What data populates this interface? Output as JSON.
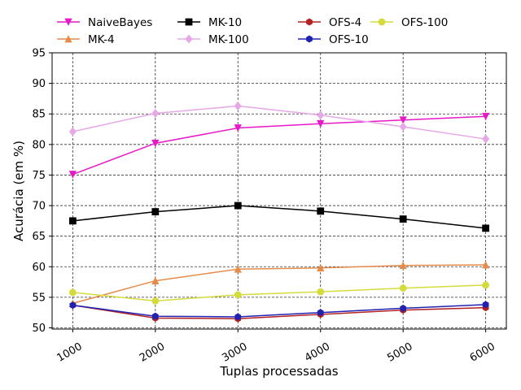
{
  "chart_data": {
    "type": "line",
    "title": "",
    "xlabel": "Tuplas processadas",
    "ylabel": "Acurácia (em %)",
    "x": [
      1000,
      2000,
      3000,
      4000,
      5000,
      6000
    ],
    "xticks": [
      "1000",
      "2000",
      "3000",
      "4000",
      "5000",
      "6000"
    ],
    "yticks": [
      "50",
      "55",
      "60",
      "65",
      "70",
      "75",
      "80",
      "85",
      "90",
      "95"
    ],
    "ylim": [
      49.8,
      95
    ],
    "xlim": [
      750,
      6250
    ],
    "grid": true,
    "legend_position": "top",
    "series": [
      {
        "name": "NaiveBayes",
        "color": "#e619c8",
        "marker": "triangle-down",
        "values": [
          75.1,
          80.2,
          82.7,
          83.4,
          84.0,
          84.6
        ]
      },
      {
        "name": "MK-4",
        "color": "#e68c4a",
        "marker": "triangle-up",
        "values": [
          54.0,
          57.7,
          59.6,
          59.8,
          60.2,
          60.3
        ]
      },
      {
        "name": "MK-10",
        "color": "#000000",
        "marker": "square",
        "values": [
          67.5,
          69.0,
          70.0,
          69.1,
          67.8,
          66.3
        ]
      },
      {
        "name": "MK-100",
        "color": "#e6a8e6",
        "marker": "diamond",
        "values": [
          82.1,
          85.1,
          86.3,
          84.8,
          82.9,
          80.9
        ]
      },
      {
        "name": "OFS-4",
        "color": "#b22222",
        "marker": "hexagon",
        "values": [
          53.7,
          51.6,
          51.5,
          52.2,
          52.9,
          53.3
        ]
      },
      {
        "name": "OFS-10",
        "color": "#2222b2",
        "marker": "hexagon",
        "values": [
          53.7,
          51.9,
          51.8,
          52.5,
          53.2,
          53.8
        ]
      },
      {
        "name": "OFS-100",
        "color": "#d4dc3c",
        "marker": "circle",
        "values": [
          55.8,
          54.4,
          55.4,
          55.9,
          56.5,
          57.0
        ]
      }
    ]
  }
}
